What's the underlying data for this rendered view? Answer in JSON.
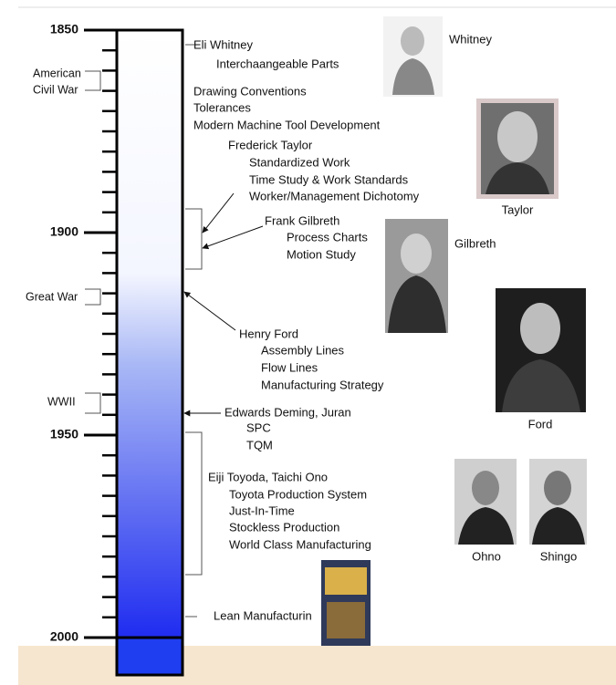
{
  "timeline": {
    "years": [
      "1850",
      "1900",
      "1950",
      "2000"
    ],
    "events": [
      [
        "American",
        "Civil War"
      ],
      [
        "Great War"
      ],
      [
        "WWII"
      ]
    ],
    "entries": [
      [
        "Eli Whitney",
        "Interchaangeable Parts"
      ],
      [
        "Drawing Conventions",
        "Tolerances",
        "Modern Machine Tool Development"
      ],
      [
        "Frederick Taylor",
        "Standardized Work",
        "Time Study & Work Standards",
        "Worker/Management Dichotomy"
      ],
      [
        "Frank Gilbreth",
        "Process Charts",
        "Motion Study"
      ],
      [
        "Henry Ford",
        "Assembly Lines",
        "Flow Lines",
        "Manufacturing Strategy"
      ],
      [
        "Edwards Deming, Juran",
        "SPC",
        "TQM"
      ],
      [
        "Eiji Toyoda, Taichi Ono",
        "Toyota Production System",
        "Just-In-Time",
        "Stockless Production",
        "World Class Manufacturing"
      ],
      [
        "Lean Manufacturin"
      ]
    ],
    "photos": [
      "Whitney",
      "Taylor",
      "Gilbreth",
      "Ford",
      "Ohno",
      "Shingo"
    ]
  }
}
